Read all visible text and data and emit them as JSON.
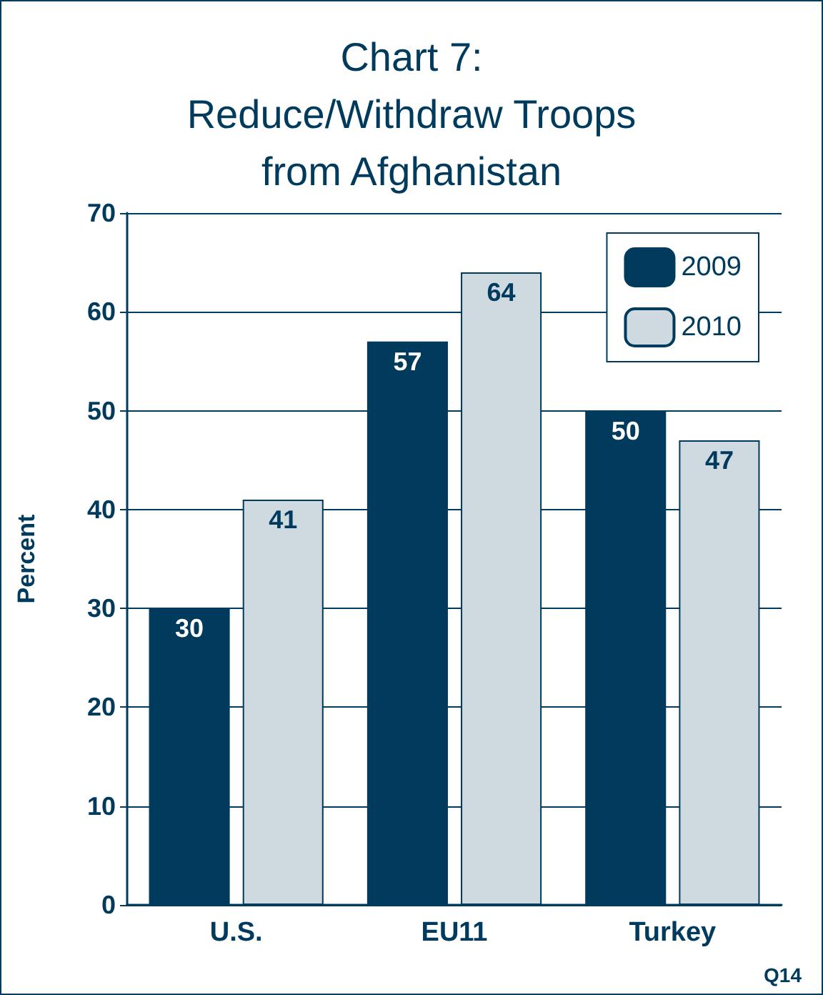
{
  "chart_data": {
    "type": "bar",
    "title": "Chart 7:\nReduce/Withdraw Troops\nfrom Afghanistan",
    "ylabel": "Percent",
    "categories": [
      "U.S.",
      "EU11",
      "Turkey"
    ],
    "series": [
      {
        "name": "2009",
        "color": "#003a5d",
        "values": [
          30,
          57,
          50
        ]
      },
      {
        "name": "2010",
        "color": "#cfd9e0",
        "values": [
          41,
          64,
          47
        ]
      }
    ],
    "ylim": [
      0,
      70
    ],
    "yticks": [
      0,
      10,
      20,
      30,
      40,
      50,
      60,
      70
    ],
    "grid": "y",
    "legend": "top right",
    "data_labels": true,
    "annotations": [
      "Q14"
    ]
  }
}
